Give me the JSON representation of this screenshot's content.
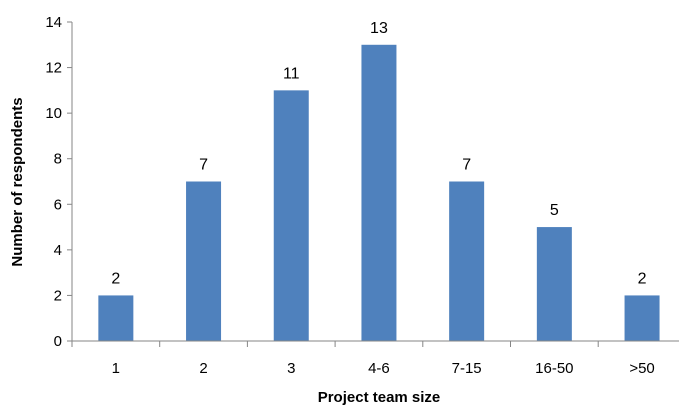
{
  "chart_data": {
    "type": "bar",
    "title": "",
    "xlabel": "Project team size",
    "ylabel": "Number of respondents",
    "categories": [
      "1",
      "2",
      "3",
      "4-6",
      "7-15",
      "16-50",
      ">50"
    ],
    "values": [
      2,
      7,
      11,
      13,
      7,
      5,
      2
    ],
    "data_labels": [
      "2",
      "7",
      "11",
      "13",
      "7",
      "5",
      "2"
    ],
    "ylim": [
      0,
      14
    ],
    "y_ticks": [
      "0",
      "2",
      "4",
      "6",
      "8",
      "10",
      "12",
      "14"
    ],
    "grid": false,
    "legend": "none",
    "bar_color": "#4f81bd"
  }
}
